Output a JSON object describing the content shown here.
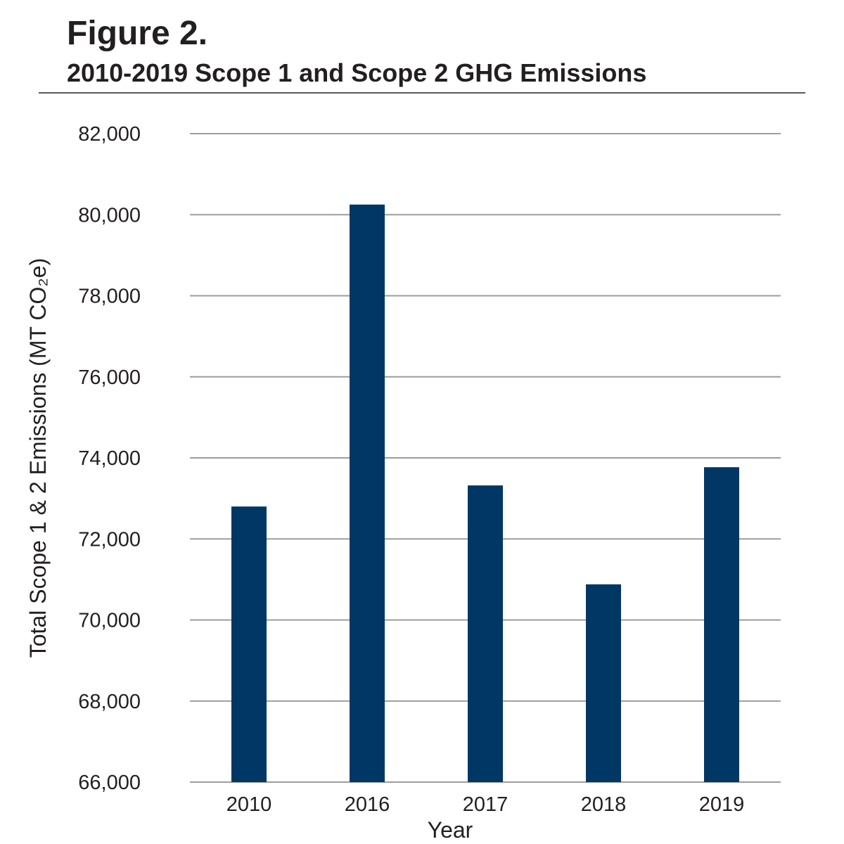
{
  "figure": {
    "label": "Figure 2.",
    "title": "2010-2019 Scope 1 and Scope 2 GHG Emissions"
  },
  "chart_data": {
    "type": "bar",
    "categories": [
      "2010",
      "2016",
      "2017",
      "2018",
      "2019"
    ],
    "values": [
      72800,
      80250,
      73320,
      70880,
      73770
    ],
    "xlabel": "Year",
    "ylabel": "Total Scope 1 & 2 Emissions (MT CO₂e)",
    "ylim": [
      66000,
      82000
    ],
    "yticks": [
      66000,
      68000,
      70000,
      72000,
      74000,
      76000,
      78000,
      80000,
      82000
    ],
    "ytick_labels": [
      "66,000",
      "68,000",
      "70,000",
      "72,000",
      "74,000",
      "76,000",
      "78,000",
      "80,000",
      "82,000"
    ],
    "grid": true,
    "colors": {
      "bar": "#003764",
      "grid": "#9d9d9d",
      "text": "#231f20"
    }
  }
}
